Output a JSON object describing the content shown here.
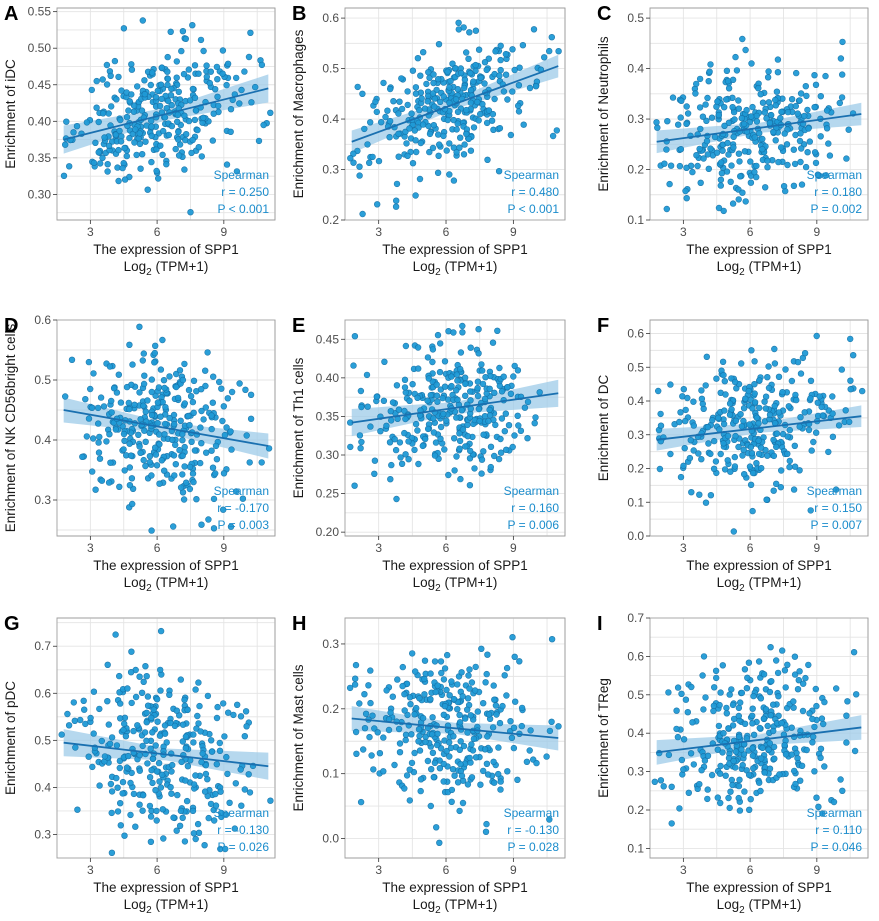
{
  "style": {
    "point_color": "#1f9ad6",
    "point_edge": "#1672a8",
    "line_color": "#1a70b0",
    "band_color": "#9dcbe8",
    "grid_color": "#e4e4e4",
    "stat_color": "#1a8ccc"
  },
  "chart_data": [
    {
      "type": "scatter",
      "panel": "A",
      "ylabel": "Enrichment of iDC",
      "xlabel": "The expression of SPP1",
      "xlabel2_main": "Log",
      "xlabel2_sub": "2",
      "xlabel2_rest": " (TPM+1)",
      "xlim": [
        1.5,
        11.3
      ],
      "xticks": [
        3,
        6,
        9
      ],
      "ylim": [
        0.265,
        0.555
      ],
      "yticks": [
        0.3,
        0.35,
        0.4,
        0.45,
        0.5,
        0.55
      ],
      "ytick_labels": [
        "0.30",
        "0.35",
        "0.40",
        "0.45",
        "0.50",
        "0.55"
      ],
      "fit": {
        "x0": 1.8,
        "y0": 0.375,
        "x1": 11.0,
        "y1": 0.445,
        "band": 0.012
      },
      "cloud": {
        "n": 320,
        "center": 0.405,
        "spread": 0.045,
        "seed": 11
      },
      "stat_method": "Spearman",
      "stat_r": "r = 0.250",
      "stat_p": "P < 0.001"
    },
    {
      "type": "scatter",
      "panel": "B",
      "ylabel": "Enrichment of Macrophages",
      "xlabel": "The expression of SPP1",
      "xlabel2_main": "Log",
      "xlabel2_sub": "2",
      "xlabel2_rest": " (TPM+1)",
      "xlim": [
        1.5,
        11.3
      ],
      "xticks": [
        3,
        6,
        9
      ],
      "ylim": [
        0.2,
        0.62
      ],
      "yticks": [
        0.2,
        0.3,
        0.4,
        0.5,
        0.6
      ],
      "ytick_labels": [
        "0.2",
        "0.3",
        "0.4",
        "0.5",
        "0.6"
      ],
      "fit": {
        "x0": 1.8,
        "y0": 0.355,
        "x1": 11.0,
        "y1": 0.505,
        "band": 0.014
      },
      "cloud": {
        "n": 320,
        "center": 0.43,
        "spread": 0.06,
        "seed": 23
      },
      "stat_method": "Spearman",
      "stat_r": "r = 0.480",
      "stat_p": "P < 0.001"
    },
    {
      "type": "scatter",
      "panel": "C",
      "ylabel": "Enrichment of Neutrophils",
      "xlabel": "The expression of SPP1",
      "xlabel2_main": "Log",
      "xlabel2_sub": "2",
      "xlabel2_rest": " (TPM+1)",
      "xlim": [
        1.5,
        11.3
      ],
      "xticks": [
        3,
        6,
        9
      ],
      "ylim": [
        0.1,
        0.52
      ],
      "yticks": [
        0.1,
        0.2,
        0.3,
        0.4,
        0.5
      ],
      "ytick_labels": [
        "0.1",
        "0.2",
        "0.3",
        "0.4",
        "0.5"
      ],
      "fit": {
        "x0": 1.8,
        "y0": 0.255,
        "x1": 11.0,
        "y1": 0.31,
        "band": 0.014
      },
      "cloud": {
        "n": 320,
        "center": 0.28,
        "spread": 0.065,
        "seed": 37
      },
      "stat_method": "Spearman",
      "stat_r": "r = 0.180",
      "stat_p": "P = 0.002"
    },
    {
      "type": "scatter",
      "panel": "D",
      "ylabel": "Enrichment of NK CD56bright cells",
      "xlabel": "The expression of SPP1",
      "xlabel2_main": "Log",
      "xlabel2_sub": "2",
      "xlabel2_rest": " (TPM+1)",
      "xlim": [
        1.5,
        11.3
      ],
      "xticks": [
        3,
        6,
        9
      ],
      "ylim": [
        0.24,
        0.6
      ],
      "yticks": [
        0.3,
        0.4,
        0.5,
        0.6
      ],
      "ytick_labels": [
        "0.3",
        "0.4",
        "0.5",
        "0.6"
      ],
      "fit": {
        "x0": 1.8,
        "y0": 0.45,
        "x1": 11.0,
        "y1": 0.39,
        "band": 0.013
      },
      "cloud": {
        "n": 320,
        "center": 0.42,
        "spread": 0.06,
        "seed": 41
      },
      "stat_method": "Spearman",
      "stat_r": "r = -0.170",
      "stat_p": "P = 0.003"
    },
    {
      "type": "scatter",
      "panel": "E",
      "ylabel": "Enrichment of Th1 cells",
      "xlabel": "The expression of SPP1",
      "xlabel2_main": "Log",
      "xlabel2_sub": "2",
      "xlabel2_rest": " (TPM+1)",
      "xlim": [
        1.5,
        11.3
      ],
      "xticks": [
        3,
        6,
        9
      ],
      "ylim": [
        0.195,
        0.475
      ],
      "yticks": [
        0.2,
        0.25,
        0.3,
        0.35,
        0.4,
        0.45
      ],
      "ytick_labels": [
        "0.20",
        "0.25",
        "0.30",
        "0.35",
        "0.40",
        "0.45"
      ],
      "fit": {
        "x0": 1.8,
        "y0": 0.342,
        "x1": 11.0,
        "y1": 0.38,
        "band": 0.011
      },
      "cloud": {
        "n": 320,
        "center": 0.36,
        "spread": 0.045,
        "seed": 53
      },
      "stat_method": "Spearman",
      "stat_r": "r = 0.160",
      "stat_p": "P = 0.006"
    },
    {
      "type": "scatter",
      "panel": "F",
      "ylabel": "Enrichment of DC",
      "xlabel": "The expression of SPP1",
      "xlabel2_main": "Log",
      "xlabel2_sub": "2",
      "xlabel2_rest": " (TPM+1)",
      "xlim": [
        1.5,
        11.3
      ],
      "xticks": [
        3,
        6,
        9
      ],
      "ylim": [
        0.0,
        0.64
      ],
      "yticks": [
        0.0,
        0.1,
        0.2,
        0.3,
        0.4,
        0.5,
        0.6
      ],
      "ytick_labels": [
        "0.0",
        "0.1",
        "0.2",
        "0.3",
        "0.4",
        "0.5",
        "0.6"
      ],
      "fit": {
        "x0": 1.8,
        "y0": 0.285,
        "x1": 11.0,
        "y1": 0.355,
        "band": 0.02
      },
      "cloud": {
        "n": 320,
        "center": 0.32,
        "spread": 0.09,
        "seed": 67
      },
      "stat_method": "Spearman",
      "stat_r": "r = 0.150",
      "stat_p": "P = 0.007"
    },
    {
      "type": "scatter",
      "panel": "G",
      "ylabel": "Enrichment of pDC",
      "xlabel": "The expression of SPP1",
      "xlabel2_main": "Log",
      "xlabel2_sub": "2",
      "xlabel2_rest": " (TPM+1)",
      "xlim": [
        1.5,
        11.3
      ],
      "xticks": [
        3,
        6,
        9
      ],
      "ylim": [
        0.25,
        0.76
      ],
      "yticks": [
        0.3,
        0.4,
        0.5,
        0.6,
        0.7
      ],
      "ytick_labels": [
        "0.3",
        "0.4",
        "0.5",
        "0.6",
        "0.7"
      ],
      "fit": {
        "x0": 1.8,
        "y0": 0.495,
        "x1": 11.0,
        "y1": 0.445,
        "band": 0.018
      },
      "cloud": {
        "n": 320,
        "center": 0.47,
        "spread": 0.09,
        "seed": 79
      },
      "stat_method": "Spearman",
      "stat_r": "r = -0.130",
      "stat_p": "P = 0.026"
    },
    {
      "type": "scatter",
      "panel": "H",
      "ylabel": "Enrichment of Mast cells",
      "xlabel": "The expression of SPP1",
      "xlabel2_main": "Log",
      "xlabel2_sub": "2",
      "xlabel2_rest": " (TPM+1)",
      "xlim": [
        1.5,
        11.3
      ],
      "xticks": [
        3,
        6,
        9
      ],
      "ylim": [
        -0.03,
        0.34
      ],
      "yticks": [
        0.0,
        0.1,
        0.2,
        0.3
      ],
      "ytick_labels": [
        "0.0",
        "0.1",
        "0.2",
        "0.3"
      ],
      "fit": {
        "x0": 1.8,
        "y0": 0.185,
        "x1": 11.0,
        "y1": 0.155,
        "band": 0.012
      },
      "cloud": {
        "n": 320,
        "center": 0.17,
        "spread": 0.06,
        "seed": 83
      },
      "stat_method": "Spearman",
      "stat_r": "r = -0.130",
      "stat_p": "P = 0.028"
    },
    {
      "type": "scatter",
      "panel": "I",
      "ylabel": "Enrichment of TReg",
      "xlabel": "The expression of SPP1",
      "xlabel2_main": "Log",
      "xlabel2_sub": "2",
      "xlabel2_rest": " (TPM+1)",
      "xlim": [
        1.5,
        11.3
      ],
      "xticks": [
        3,
        6,
        9
      ],
      "ylim": [
        0.075,
        0.7
      ],
      "yticks": [
        0.1,
        0.2,
        0.3,
        0.4,
        0.5,
        0.6,
        0.7
      ],
      "ytick_labels": [
        "0.1",
        "0.2",
        "0.3",
        "0.4",
        "0.5",
        "0.6",
        "0.7"
      ],
      "fit": {
        "x0": 1.8,
        "y0": 0.35,
        "x1": 11.0,
        "y1": 0.415,
        "band": 0.02
      },
      "cloud": {
        "n": 320,
        "center": 0.38,
        "spread": 0.1,
        "seed": 97
      },
      "stat_method": "Spearman",
      "stat_r": "r = 0.110",
      "stat_p": "P = 0.046"
    }
  ]
}
